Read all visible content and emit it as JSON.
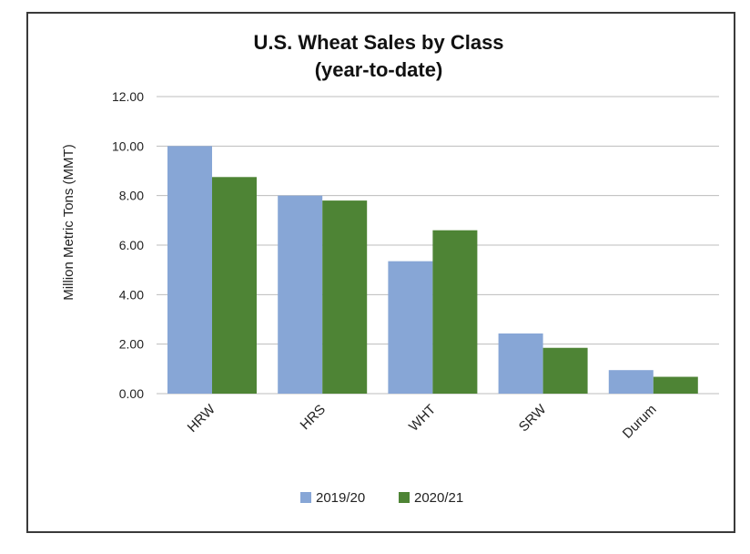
{
  "chart_data": {
    "type": "bar",
    "title": "U.S. Wheat Sales by Class",
    "subtitle": "(year-to-date)",
    "xlabel": "",
    "ylabel": "Million Metric Tons (MMT)",
    "ylim": [
      0,
      12
    ],
    "yticks": [
      "0.00",
      "2.00",
      "4.00",
      "6.00",
      "8.00",
      "10.00",
      "12.00"
    ],
    "grid": true,
    "legend_position": "bottom",
    "categories": [
      "HRW",
      "HRS",
      "WHT",
      "SRW",
      "Durum"
    ],
    "series": [
      {
        "name": "2019/20",
        "color": "#87A6D6",
        "values": [
          10.0,
          8.0,
          5.35,
          2.43,
          0.95
        ]
      },
      {
        "name": "2020/21",
        "color": "#4E8435",
        "values": [
          8.75,
          7.8,
          6.6,
          1.85,
          0.68
        ]
      }
    ]
  }
}
